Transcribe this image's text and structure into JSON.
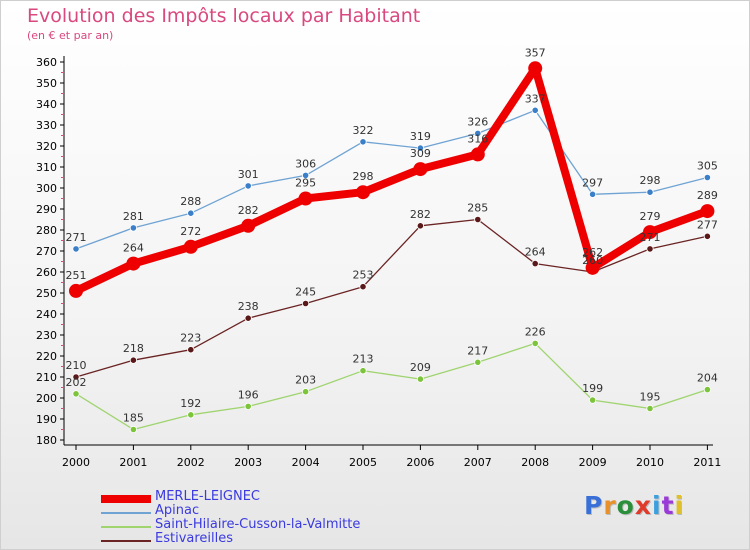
{
  "header": {
    "title": "Evolution des Impôts locaux par Habitant",
    "subtitle": "(en € et par an)"
  },
  "brand": {
    "text": "Proxiti",
    "letter_colors": [
      "#3a6fd8",
      "#e8902a",
      "#2a8f3a",
      "#e03a2a",
      "#3aa0e0",
      "#9a3ad8",
      "#e0c02a"
    ]
  },
  "chart_data": {
    "type": "line",
    "title": "Evolution des Impôts locaux par Habitant",
    "subtitle": "(en € et par an)",
    "xlabel": "",
    "ylabel": "",
    "x": [
      "2000",
      "2001",
      "2002",
      "2003",
      "2004",
      "2005",
      "2006",
      "2007",
      "2008",
      "2009",
      "2010",
      "2011"
    ],
    "ylim": [
      180,
      360
    ],
    "yticks": [
      180,
      190,
      200,
      210,
      220,
      230,
      240,
      250,
      260,
      270,
      280,
      290,
      300,
      310,
      320,
      330,
      340,
      350,
      360
    ],
    "grid": false,
    "legend_position": "bottom-left",
    "series": [
      {
        "name": "MERLE-LEIGNEC",
        "color": "#ee0000",
        "values": [
          251,
          264,
          272,
          282,
          295,
          298,
          309,
          316,
          357,
          262,
          279,
          289
        ],
        "labels": [
          "251",
          "264",
          "272",
          "282",
          "295",
          "298",
          "309",
          "316",
          "357",
          "262",
          "279",
          "289"
        ]
      },
      {
        "name": "Apinac",
        "color": "#6fa3d3",
        "values": [
          271,
          281,
          288,
          301,
          306,
          322,
          319,
          326,
          337,
          297,
          298,
          305
        ],
        "labels": [
          "271",
          "281",
          "288",
          "301",
          "306",
          "322",
          "319",
          "326",
          "337",
          "297",
          "298",
          "305"
        ]
      },
      {
        "name": "Saint-Hilaire-Cusson-la-Valmitte",
        "color": "#9fd46f",
        "values": [
          202,
          185,
          192,
          196,
          203,
          213,
          209,
          217,
          226,
          199,
          195,
          204
        ],
        "labels": [
          "202",
          "185",
          "192",
          "196",
          "203",
          "213",
          "209",
          "217",
          "226",
          "199",
          "195",
          "204"
        ]
      },
      {
        "name": "Estivareilles",
        "color": "#6b2424",
        "values": [
          210,
          218,
          223,
          238,
          245,
          253,
          282,
          285,
          264,
          260,
          271,
          277
        ],
        "labels": [
          "210",
          "218",
          "223",
          "238",
          "245",
          "253",
          "282",
          "285",
          "264",
          "260",
          "271",
          "277"
        ]
      }
    ]
  }
}
